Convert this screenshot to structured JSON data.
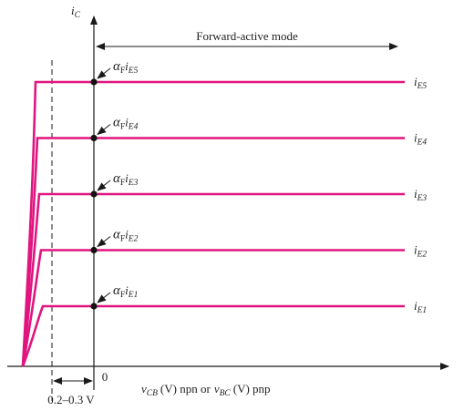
{
  "colors": {
    "curve": "#e0157f",
    "axis": "#1a1a1a",
    "dot": "#111111"
  },
  "axes": {
    "y_label_main": "i",
    "y_label_sub": "C",
    "x_label": "v_CB (V) npn or v_BC (V) pnp",
    "x_label_parts": {
      "v1": "v",
      "v1_sub": "CB",
      "mid": "(V) npn or",
      "v2": "v",
      "v2_sub": "BC",
      "end": "(V) pnp"
    },
    "origin_label": "0",
    "offset_label": "0.2–0.3 V"
  },
  "region_label": "Forward-active mode",
  "curves": [
    {
      "id": "E5",
      "name": "i",
      "name_sub": "E5",
      "annot": "α",
      "annot_sub": "F",
      "annot_i": "i",
      "annot_i_sub": "E5",
      "level": 5
    },
    {
      "id": "E4",
      "name": "i",
      "name_sub": "E4",
      "annot": "α",
      "annot_sub": "F",
      "annot_i": "i",
      "annot_i_sub": "E4",
      "level": 4
    },
    {
      "id": "E3",
      "name": "i",
      "name_sub": "E3",
      "annot": "α",
      "annot_sub": "F",
      "annot_i": "i",
      "annot_i_sub": "E3",
      "level": 3
    },
    {
      "id": "E2",
      "name": "i",
      "name_sub": "E2",
      "annot": "α",
      "annot_sub": "F",
      "annot_i": "i",
      "annot_i_sub": "E2",
      "level": 2
    },
    {
      "id": "E1",
      "name": "i",
      "name_sub": "E1",
      "annot": "α",
      "annot_sub": "F",
      "annot_i": "i",
      "annot_i_sub": "E1",
      "level": 1
    }
  ]
}
